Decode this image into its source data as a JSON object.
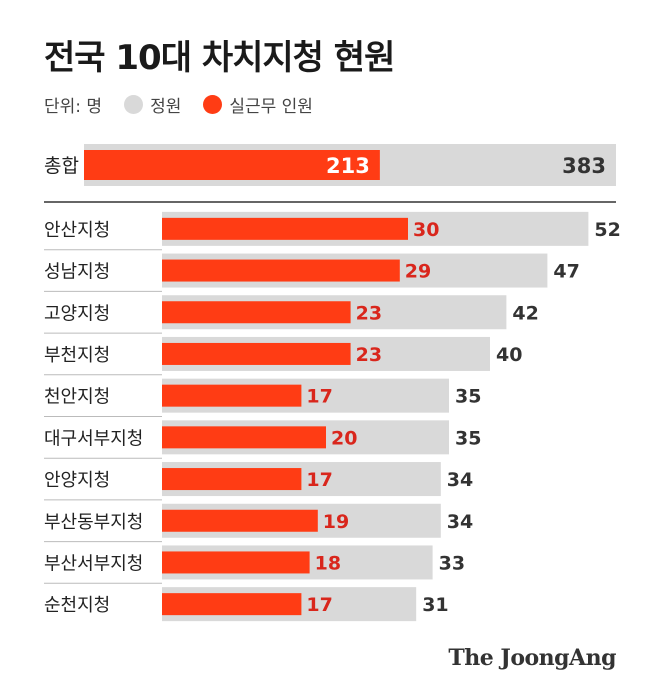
{
  "title": "전국 10대 차치지청 현원",
  "legend": {
    "unit": "단위: 명",
    "quota_label": "정원",
    "actual_label": "실근무 인원"
  },
  "colors": {
    "quota": "#d9d9d9",
    "actual": "#ff3c14",
    "actual_value_text": "#d9261c",
    "quota_value_text": "#333333"
  },
  "brand": "The JoongAng",
  "chart_data": {
    "type": "bar",
    "orientation": "horizontal",
    "total": {
      "category": "총합",
      "actual": 213,
      "quota": 383
    },
    "categories": [
      "안산지청",
      "성남지청",
      "고양지청",
      "부천지청",
      "천안지청",
      "대구서부지청",
      "안양지청",
      "부산동부지청",
      "부산서부지청",
      "순천지청"
    ],
    "series": [
      {
        "name": "정원",
        "values": [
          52,
          47,
          42,
          40,
          35,
          35,
          34,
          34,
          33,
          31
        ]
      },
      {
        "name": "실근무 인원",
        "values": [
          30,
          29,
          23,
          23,
          17,
          20,
          17,
          19,
          18,
          17
        ]
      }
    ]
  }
}
